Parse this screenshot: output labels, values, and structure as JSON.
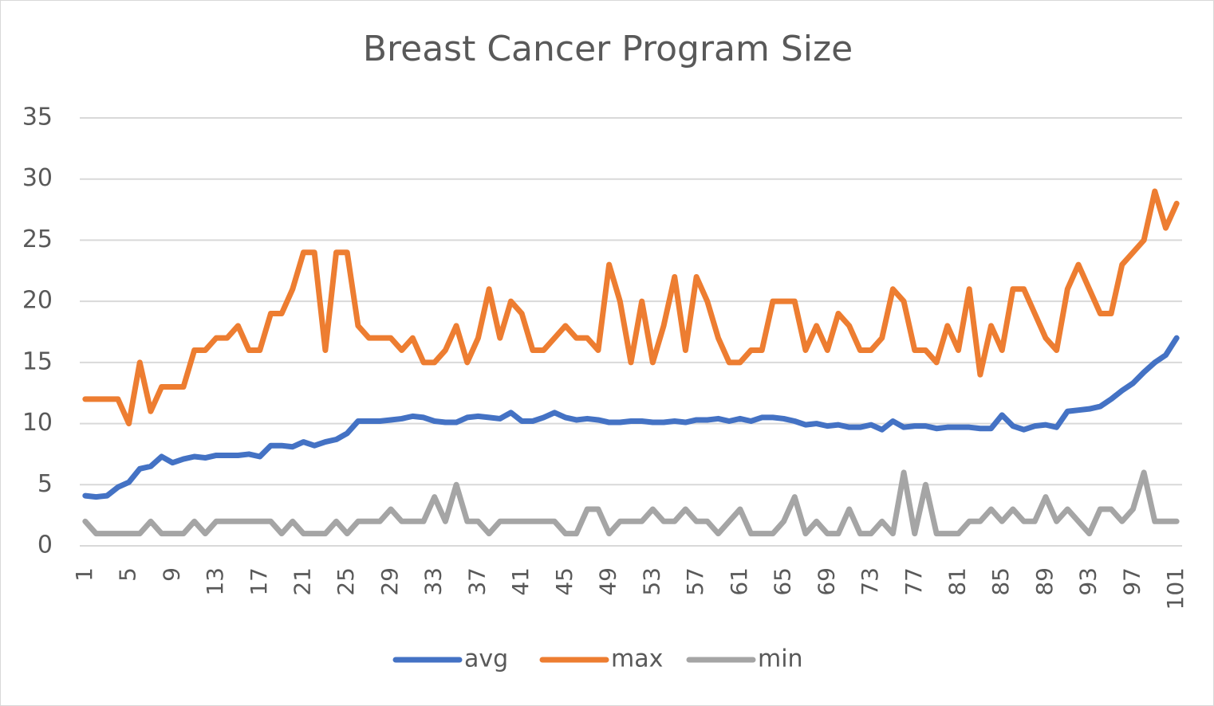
{
  "chart_data": {
    "type": "line",
    "title": "Breast Cancer Program Size",
    "categories": [
      1,
      null,
      null,
      null,
      5,
      null,
      null,
      null,
      9,
      null,
      null,
      null,
      13,
      null,
      null,
      null,
      17,
      null,
      null,
      null,
      21,
      null,
      null,
      null,
      25,
      null,
      null,
      null,
      29,
      null,
      null,
      null,
      33,
      null,
      null,
      null,
      37,
      null,
      null,
      null,
      41,
      null,
      null,
      null,
      45,
      null,
      null,
      null,
      49,
      null,
      null,
      null,
      53,
      null,
      null,
      null,
      57,
      null,
      null,
      null,
      61,
      null,
      null,
      null,
      65,
      null,
      null,
      null,
      69,
      null,
      null,
      null,
      73,
      null,
      null,
      null,
      77,
      null,
      null,
      null,
      81,
      null,
      null,
      null,
      85,
      null,
      null,
      null,
      89,
      null,
      null,
      null,
      93,
      null,
      null,
      null,
      97,
      null,
      null,
      null,
      101
    ],
    "series": [
      {
        "name": "avg",
        "color": "#4472c4",
        "values": [
          4.1,
          4,
          4.1,
          4.8,
          5.2,
          6.3,
          6.5,
          7.3,
          6.8,
          7.1,
          7.3,
          7.2,
          7.4,
          7.4,
          7.4,
          7.5,
          7.3,
          8.2,
          8.2,
          8.1,
          8.5,
          8.2,
          8.5,
          8.7,
          9.2,
          10.2,
          10.2,
          10.2,
          10.3,
          10.4,
          10.6,
          10.5,
          10.2,
          10.1,
          10.1,
          10.5,
          10.6,
          10.5,
          10.4,
          10.9,
          10.2,
          10.2,
          10.5,
          10.9,
          10.5,
          10.3,
          10.4,
          10.3,
          10.1,
          10.1,
          10.2,
          10.2,
          10.1,
          10.1,
          10.2,
          10.1,
          10.3,
          10.3,
          10.4,
          10.2,
          10.4,
          10.2,
          10.5,
          10.5,
          10.4,
          10.2,
          9.9,
          10,
          9.8,
          9.9,
          9.7,
          9.7,
          9.9,
          9.5,
          10.2,
          9.7,
          9.8,
          9.8,
          9.6,
          9.7,
          9.7,
          9.7,
          9.6,
          9.6,
          10.7,
          9.8,
          9.5,
          9.8,
          9.9,
          9.7,
          11,
          11.1,
          11.2,
          11.4,
          12,
          12.7,
          13.3,
          14.2,
          15,
          15.6,
          17
        ]
      },
      {
        "name": "max",
        "color": "#ed7d31",
        "values": [
          12,
          12,
          12,
          12,
          10,
          15,
          11,
          13,
          13,
          13,
          16,
          16,
          17,
          17,
          18,
          16,
          16,
          19,
          19,
          21,
          24,
          24,
          16,
          24,
          24,
          18,
          17,
          17,
          17,
          16,
          17,
          15,
          15,
          16,
          18,
          15,
          17,
          21,
          17,
          20,
          19,
          16,
          16,
          17,
          18,
          17,
          17,
          16,
          23,
          20,
          15,
          20,
          15,
          18,
          22,
          16,
          22,
          20,
          17,
          15,
          15,
          16,
          16,
          20,
          20,
          20,
          16,
          18,
          16,
          19,
          18,
          16,
          16,
          17,
          21,
          20,
          16,
          16,
          15,
          18,
          16,
          21,
          14,
          18,
          16,
          21,
          21,
          19,
          17,
          16,
          21,
          23,
          21,
          19,
          19,
          23,
          24,
          25,
          29,
          26,
          28
        ]
      },
      {
        "name": "min",
        "color": "#a5a5a5",
        "values": [
          2,
          1,
          1,
          1,
          1,
          1,
          2,
          1,
          1,
          1,
          2,
          1,
          2,
          2,
          2,
          2,
          2,
          2,
          1,
          2,
          1,
          1,
          1,
          2,
          1,
          2,
          2,
          2,
          3,
          2,
          2,
          2,
          4,
          2,
          5,
          2,
          2,
          1,
          2,
          2,
          2,
          2,
          2,
          2,
          1,
          1,
          3,
          3,
          1,
          2,
          2,
          2,
          3,
          2,
          2,
          3,
          2,
          2,
          1,
          2,
          3,
          1,
          1,
          1,
          2,
          4,
          1,
          2,
          1,
          1,
          3,
          1,
          1,
          2,
          1,
          6,
          1,
          5,
          1,
          1,
          1,
          2,
          2,
          3,
          2,
          3,
          2,
          2,
          4,
          2,
          3,
          2,
          1,
          3,
          3,
          2,
          3,
          6,
          2,
          2,
          2
        ]
      }
    ],
    "ylim": [
      0,
      35
    ],
    "yticks": [
      0,
      5,
      10,
      15,
      20,
      25,
      30,
      35
    ],
    "grid": true,
    "legend": "bottom"
  }
}
